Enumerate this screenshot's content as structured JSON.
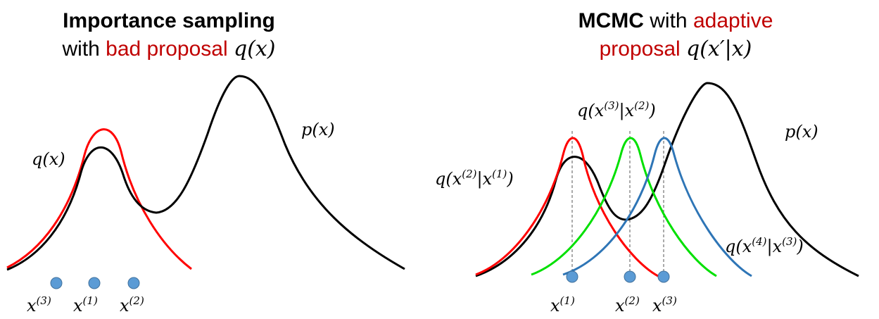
{
  "left_panel": {
    "title_bold": "Importance sampling",
    "title_plain": "with ",
    "title_red": "bad proposal",
    "title_math": "q(x)",
    "target_label": "p(x)",
    "proposal_label": "q(x)",
    "samples": [
      {
        "base": "x",
        "sup": "(3)"
      },
      {
        "base": "x",
        "sup": "(1)"
      },
      {
        "base": "x",
        "sup": "(2)"
      }
    ],
    "colors": {
      "target": "#000000",
      "proposal": "#ff0000",
      "sample": "#5b9bd5"
    }
  },
  "right_panel": {
    "title_bold": "MCMC",
    "title_plain": " with ",
    "title_red": "adaptive",
    "title_red2": "proposal",
    "title_math": "q(x′|x)",
    "target_label": "p(x)",
    "proposal_labels": [
      {
        "a": "q(x",
        "s1": "(2)",
        "b": "|x",
        "s2": "(1)",
        "c": ")"
      },
      {
        "a": "q(x",
        "s1": "(3)",
        "b": "|x",
        "s2": "(2)",
        "c": ")"
      },
      {
        "a": "q(x",
        "s1": "(4)",
        "b": "|x",
        "s2": "(3)",
        "c": ")"
      }
    ],
    "samples": [
      {
        "base": "x",
        "sup": "(1)"
      },
      {
        "base": "x",
        "sup": "(2)"
      },
      {
        "base": "x",
        "sup": "(3)"
      }
    ],
    "colors": {
      "target": "#000000",
      "proposals": [
        "#ff0000",
        "#00e000",
        "#2e75b6"
      ],
      "sample": "#5b9bd5"
    }
  }
}
